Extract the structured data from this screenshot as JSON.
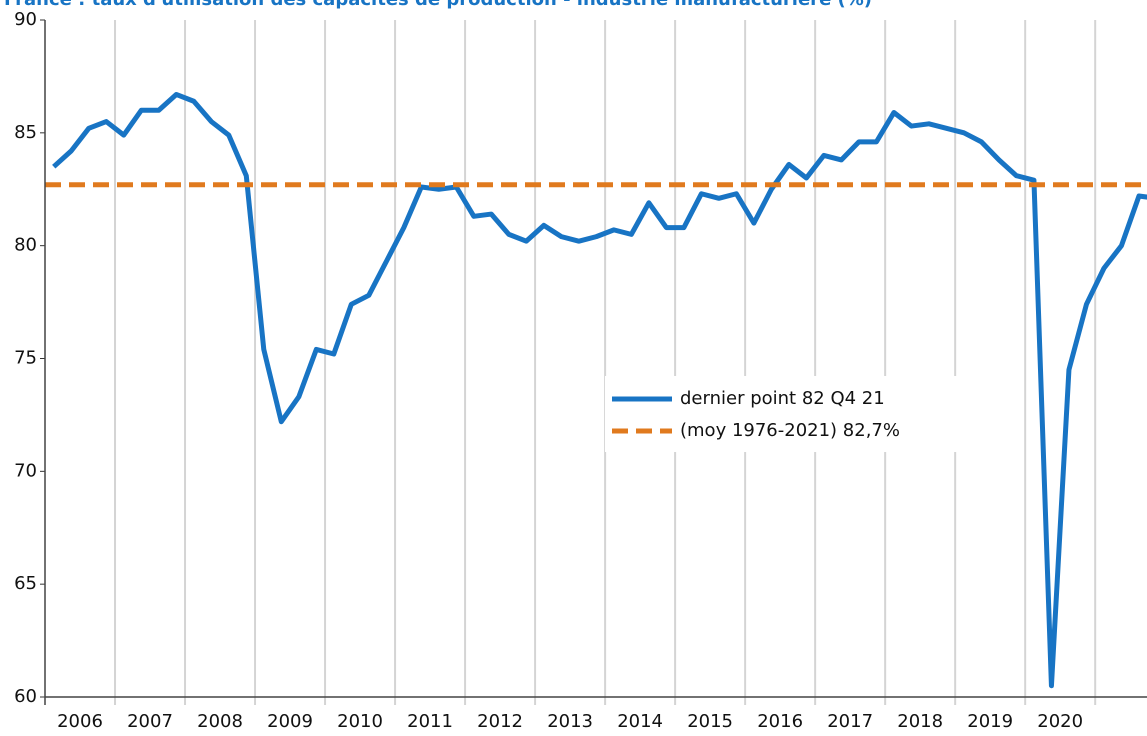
{
  "chart_data": {
    "type": "line",
    "title": "France : taux d'utilisation des capacités de production - industrie manufacturière (%)",
    "x": [
      2006.125,
      2006.375,
      2006.625,
      2006.875,
      2007.125,
      2007.375,
      2007.625,
      2007.875,
      2008.125,
      2008.375,
      2008.625,
      2008.875,
      2009.125,
      2009.375,
      2009.625,
      2009.875,
      2010.125,
      2010.375,
      2010.625,
      2010.875,
      2011.125,
      2011.375,
      2011.625,
      2011.875,
      2012.125,
      2012.375,
      2012.625,
      2012.875,
      2013.125,
      2013.375,
      2013.625,
      2013.875,
      2014.125,
      2014.375,
      2014.625,
      2014.875,
      2015.125,
      2015.375,
      2015.625,
      2015.875,
      2016.125,
      2016.375,
      2016.625,
      2016.875,
      2017.125,
      2017.375,
      2017.625,
      2017.875,
      2018.125,
      2018.375,
      2018.625,
      2018.875,
      2019.125,
      2019.375,
      2019.625,
      2019.875,
      2020.125,
      2020.375,
      2020.625,
      2020.875,
      2021.125,
      2021.375,
      2021.625,
      2021.875
    ],
    "series": [
      {
        "name": "dernier point 82 Q4 21",
        "color": "#1874c4",
        "values": [
          83.5,
          84.2,
          85.2,
          85.5,
          84.9,
          86.0,
          86.0,
          86.7,
          86.4,
          85.5,
          84.9,
          83.1,
          75.4,
          72.2,
          73.3,
          75.4,
          75.2,
          77.4,
          77.8,
          79.3,
          80.8,
          82.6,
          82.5,
          82.6,
          81.3,
          81.4,
          80.5,
          80.2,
          80.9,
          80.4,
          80.2,
          80.4,
          80.7,
          80.5,
          81.9,
          80.8,
          80.8,
          82.3,
          82.1,
          82.3,
          81.0,
          82.5,
          83.6,
          83.0,
          84.0,
          83.8,
          84.6,
          84.6,
          85.9,
          85.3,
          85.4,
          85.2,
          85.0,
          84.6,
          83.8,
          83.1,
          82.9,
          60.5,
          74.5,
          77.4,
          79.0,
          80.0,
          82.2,
          82.1
        ]
      }
    ],
    "reference_line": {
      "name": "(moy 1976-2021) 82,7%",
      "color": "#e07a1e",
      "value": 82.7
    },
    "xlim": [
      2006,
      2021.74
    ],
    "xticks": [
      {
        "value": 2006.5,
        "label": "2006"
      },
      {
        "value": 2007.5,
        "label": "2007"
      },
      {
        "value": 2008.5,
        "label": "2008"
      },
      {
        "value": 2009.5,
        "label": "2009"
      },
      {
        "value": 2010.5,
        "label": "2010"
      },
      {
        "value": 2011.5,
        "label": "2011"
      },
      {
        "value": 2012.5,
        "label": "2012"
      },
      {
        "value": 2013.5,
        "label": "2013"
      },
      {
        "value": 2014.5,
        "label": "2014"
      },
      {
        "value": 2015.5,
        "label": "2015"
      },
      {
        "value": 2016.5,
        "label": "2016"
      },
      {
        "value": 2017.5,
        "label": "2017"
      },
      {
        "value": 2018.5,
        "label": "2018"
      },
      {
        "value": 2019.5,
        "label": "2019"
      },
      {
        "value": 2020.5,
        "label": "2020"
      }
    ],
    "ylim": [
      60,
      90
    ],
    "yticks": [
      60,
      65,
      70,
      75,
      80,
      85,
      90
    ],
    "grid": true
  }
}
